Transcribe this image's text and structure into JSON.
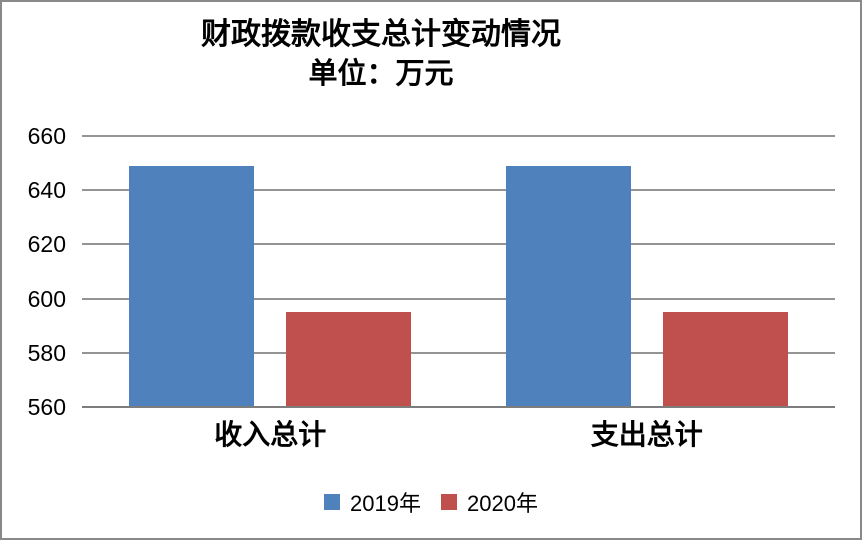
{
  "chart_data": {
    "type": "bar",
    "title": "财政拨款收支总计变动情况",
    "subtitle": "单位：万元",
    "categories": [
      "收入总计",
      "支出总计"
    ],
    "series": [
      {
        "name": "2019年",
        "color": "#4F81BD",
        "values": [
          649,
          649
        ]
      },
      {
        "name": "2020年",
        "color": "#C0504D",
        "values": [
          595,
          595
        ]
      }
    ],
    "xlabel": "",
    "ylabel": "",
    "ylim": [
      560,
      660
    ],
    "yticks": [
      560,
      580,
      600,
      620,
      640,
      660
    ],
    "grid": true,
    "legend_position": "bottom",
    "frame_color": "#898989",
    "gridline_color": "#949494"
  }
}
